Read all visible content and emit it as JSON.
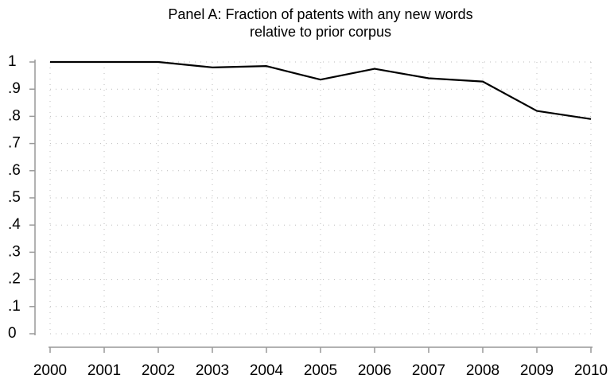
{
  "chart_data": {
    "type": "line",
    "title": [
      "Panel A: Fraction of patents with any new words",
      "relative to prior corpus"
    ],
    "x": [
      2000,
      2001,
      2002,
      2003,
      2004,
      2005,
      2006,
      2007,
      2008,
      2009,
      2010
    ],
    "series": [
      {
        "color": "#000000",
        "values": [
          1.0,
          1.0,
          1.0,
          0.98,
          0.985,
          0.935,
          0.975,
          0.94,
          0.928,
          0.82,
          0.79
        ]
      }
    ],
    "xlim": [
      2000,
      2010
    ],
    "xticks": [
      2000,
      2001,
      2002,
      2003,
      2004,
      2005,
      2006,
      2007,
      2008,
      2009,
      2010
    ],
    "ylim": [
      0,
      1
    ],
    "yticks": [
      0,
      {
        "value": 0.1,
        "label": ".1"
      },
      {
        "value": 0.2,
        "label": ".2"
      },
      {
        "value": 0.3,
        "label": ".3"
      },
      {
        "value": 0.4,
        "label": ".4"
      },
      {
        "value": 0.5,
        "label": ".5"
      },
      {
        "value": 0.6,
        "label": ".6"
      },
      {
        "value": 0.7,
        "label": ".7"
      },
      {
        "value": 0.8,
        "label": ".8"
      },
      {
        "value": 0.9,
        "label": ".9"
      },
      1
    ],
    "grid": true
  }
}
